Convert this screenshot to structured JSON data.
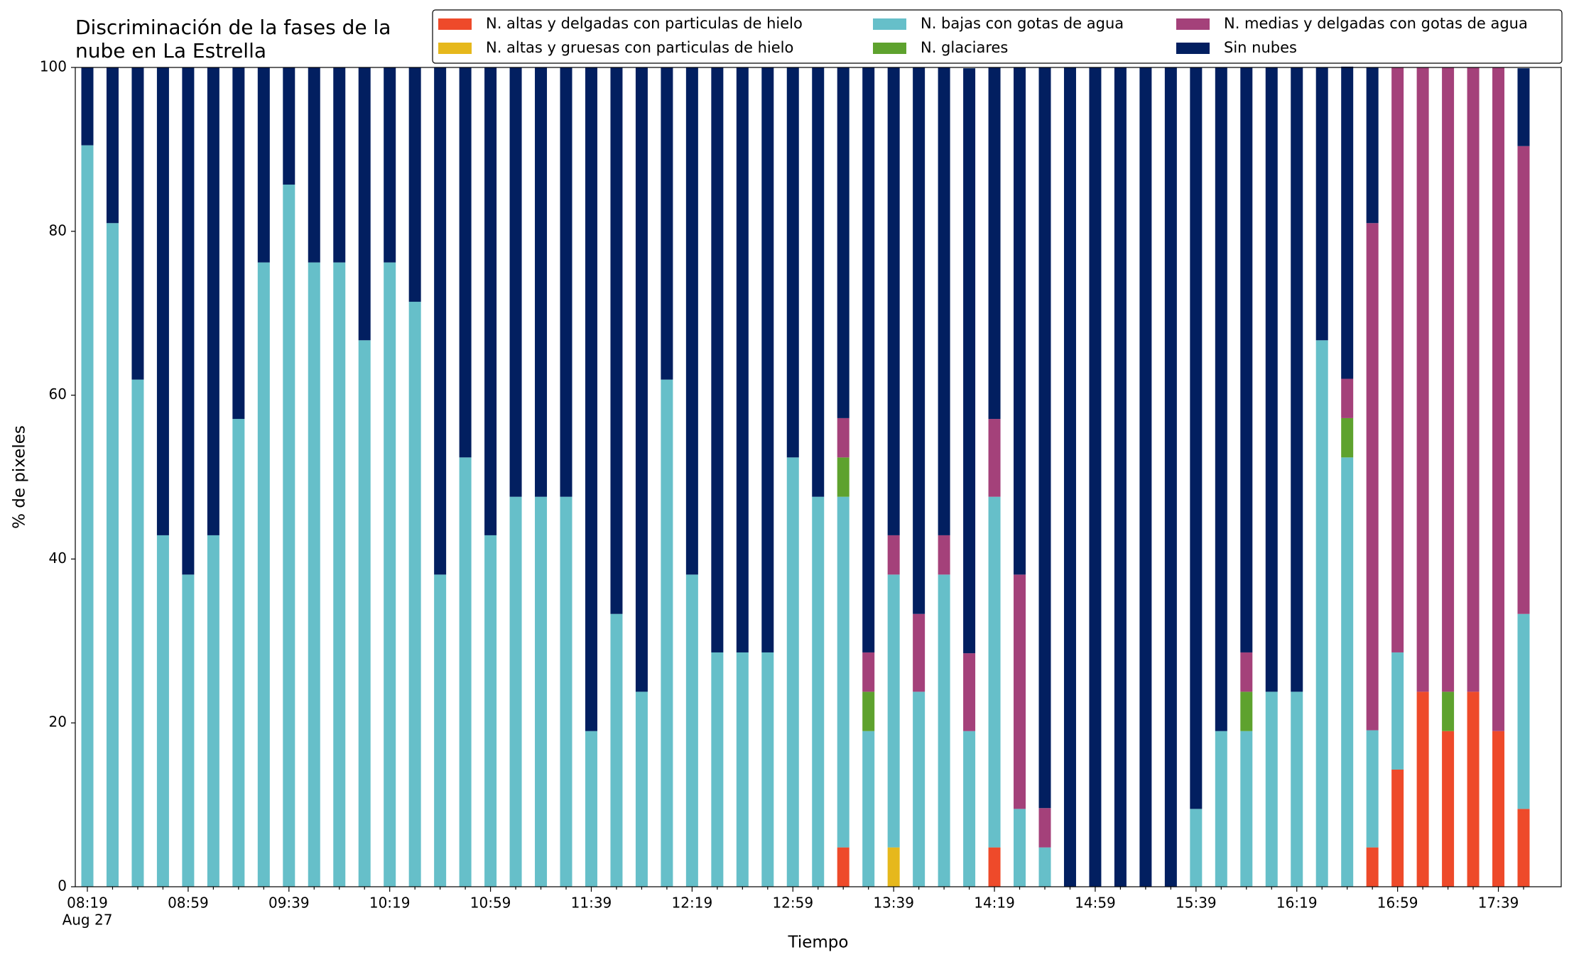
{
  "chart_data": {
    "type": "stacked_bar",
    "title": [
      "Discriminación de la fases de la",
      "nube en La Estrella"
    ],
    "xlabel": "Tiempo",
    "ylabel": "% de pixeles",
    "date": "Aug 27",
    "categories": [
      "08:19",
      null,
      null,
      null,
      "08:59",
      null,
      null,
      null,
      "09:39",
      null,
      null,
      null,
      "10:19",
      null,
      null,
      null,
      "10:59",
      null,
      null,
      null,
      "11:39",
      null,
      null,
      null,
      "12:19",
      null,
      null,
      null,
      "12:59",
      null,
      null,
      null,
      "13:39",
      null,
      null,
      null,
      "14:19",
      null,
      null,
      null,
      "14:59",
      null,
      null,
      null,
      "15:39",
      null,
      null,
      null,
      "16:19",
      null,
      null,
      null,
      "16:59",
      null,
      null,
      null,
      "17:39",
      null
    ],
    "ylim": [
      0,
      100
    ],
    "yticks": [
      0,
      20,
      40,
      60,
      80,
      100
    ],
    "legend": "top",
    "series": [
      {
        "name": "N. altas y delgadas con particulas de hielo",
        "color": "#ee4a2a",
        "values": [
          0,
          0,
          0,
          0,
          0,
          0,
          0,
          0,
          0,
          0,
          0,
          0,
          0,
          0,
          0,
          0,
          0,
          0,
          0,
          0,
          0,
          0,
          0,
          0,
          0,
          0,
          0,
          0,
          0,
          0,
          4.8,
          0,
          0,
          0,
          0,
          0,
          4.8,
          0,
          0,
          0,
          0,
          0,
          0,
          0,
          0,
          0,
          0,
          0,
          0,
          0,
          0,
          4.8,
          14.3,
          23.8,
          19.0,
          23.8,
          19.0,
          9.5
        ]
      },
      {
        "name": "N. altas y gruesas con particulas de hielo",
        "color": "#e6b81c",
        "values": [
          0,
          0,
          0,
          0,
          0,
          0,
          0,
          0,
          0,
          0,
          0,
          0,
          0,
          0,
          0,
          0,
          0,
          0,
          0,
          0,
          0,
          0,
          0,
          0,
          0,
          0,
          0,
          0,
          0,
          0,
          0,
          0,
          4.8,
          0,
          0,
          0,
          0,
          0,
          0,
          0,
          0,
          0,
          0,
          0,
          0,
          0,
          0,
          0,
          0,
          0,
          0,
          0,
          0,
          0,
          0,
          0,
          0,
          0
        ]
      },
      {
        "name": "N. bajas con gotas de agua",
        "color": "#66bfc9",
        "values": [
          90.5,
          81.0,
          61.9,
          42.9,
          38.1,
          42.9,
          57.1,
          76.2,
          85.7,
          76.2,
          76.2,
          66.7,
          76.2,
          71.4,
          38.1,
          52.4,
          42.9,
          47.6,
          47.6,
          47.6,
          19.0,
          33.3,
          23.8,
          61.9,
          38.1,
          28.6,
          28.6,
          28.6,
          52.4,
          47.6,
          42.8,
          19.0,
          33.3,
          23.8,
          38.1,
          19.0,
          42.8,
          9.5,
          4.8,
          0,
          0,
          0,
          0,
          0,
          9.5,
          19.0,
          19.0,
          23.8,
          23.8,
          66.7,
          52.4,
          14.3,
          14.3,
          0,
          0,
          0,
          0,
          23.8
        ]
      },
      {
        "name": "N. glaciares",
        "color": "#5ea22e",
        "values": [
          0,
          0,
          0,
          0,
          0,
          0,
          0,
          0,
          0,
          0,
          0,
          0,
          0,
          0,
          0,
          0,
          0,
          0,
          0,
          0,
          0,
          0,
          0,
          0,
          0,
          0,
          0,
          0,
          0,
          0,
          4.8,
          4.8,
          0,
          0,
          0,
          0,
          0,
          0,
          0,
          0,
          0,
          0,
          0,
          0,
          0,
          0,
          4.8,
          0,
          0,
          0,
          4.8,
          0,
          0,
          0,
          4.8,
          0,
          0,
          0
        ]
      },
      {
        "name": "N. medias y delgadas con gotas de agua",
        "color": "#a4417a",
        "values": [
          0,
          0,
          0,
          0,
          0,
          0,
          0,
          0,
          0,
          0,
          0,
          0,
          0,
          0,
          0,
          0,
          0,
          0,
          0,
          0,
          0,
          0,
          0,
          0,
          0,
          0,
          0,
          0,
          0,
          0,
          4.8,
          4.8,
          4.8,
          9.5,
          4.8,
          9.5,
          9.5,
          28.6,
          4.8,
          0,
          0,
          0,
          0,
          0,
          0,
          0,
          4.8,
          0,
          0,
          0,
          4.8,
          61.9,
          71.4,
          76.2,
          76.2,
          76.2,
          81.0,
          57.1
        ]
      },
      {
        "name": "Sin nubes",
        "color": "#021f60",
        "values": [
          9.5,
          19.0,
          38.1,
          57.1,
          61.9,
          57.1,
          42.9,
          23.8,
          14.3,
          23.8,
          23.8,
          33.3,
          23.8,
          28.6,
          61.9,
          47.6,
          57.1,
          52.4,
          52.4,
          52.4,
          81.0,
          66.7,
          76.2,
          38.1,
          61.9,
          71.4,
          71.4,
          71.4,
          47.6,
          52.4,
          42.8,
          71.4,
          57.1,
          66.7,
          57.1,
          71.4,
          42.9,
          61.9,
          90.4,
          100,
          100,
          100,
          100,
          100,
          90.5,
          81.0,
          71.4,
          76.2,
          76.2,
          33.3,
          38.1,
          19.0,
          0,
          0,
          0,
          0,
          0,
          9.5
        ]
      }
    ]
  }
}
